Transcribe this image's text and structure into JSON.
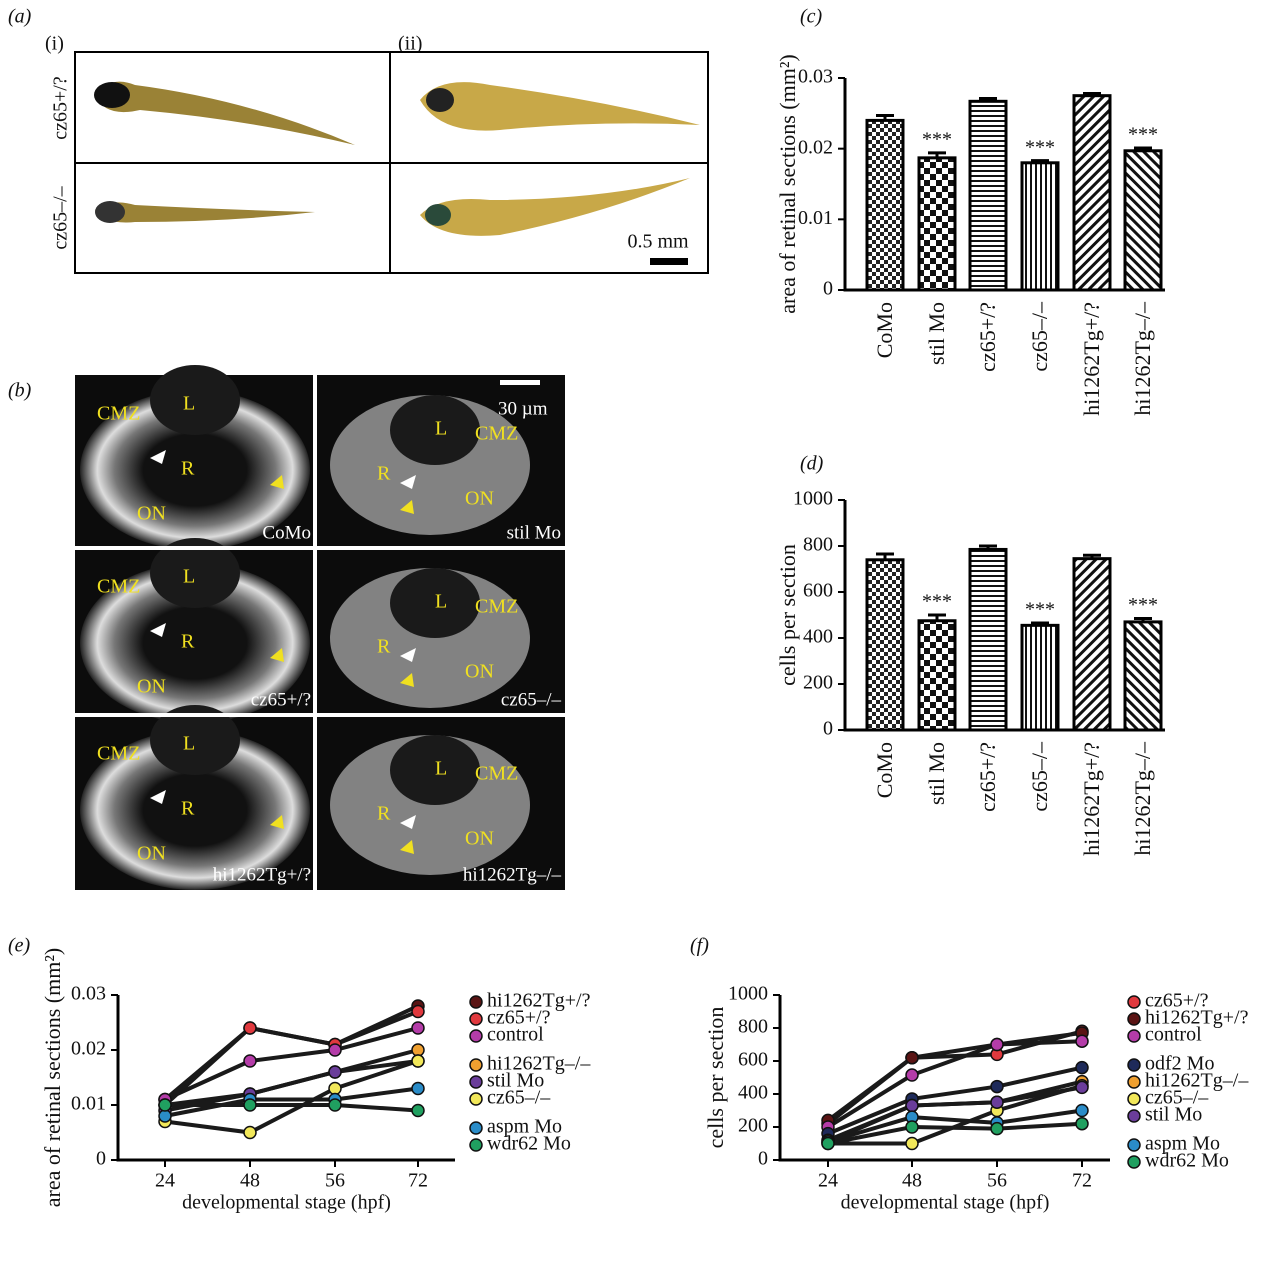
{
  "panel_a": {
    "label": "(a)",
    "columns": [
      "(i)",
      "(ii)"
    ],
    "rows": [
      "cz65+/?",
      "cz65–/–"
    ],
    "scale": "0.5 mm"
  },
  "panel_b": {
    "label": "(b)",
    "scale": "30 µm",
    "cells": [
      {
        "caption": "CoMo",
        "marks": [
          "CMZ",
          "L",
          "R",
          "ON"
        ]
      },
      {
        "caption": "stil Mo",
        "marks": [
          "L",
          "CMZ",
          "R",
          "ON"
        ]
      },
      {
        "caption": "cz65+/?",
        "marks": [
          "CMZ",
          "L",
          "R",
          "ON"
        ]
      },
      {
        "caption": "cz65–/–",
        "marks": [
          "L",
          "CMZ",
          "R",
          "ON"
        ]
      },
      {
        "caption": "hi1262Tg+/?",
        "marks": [
          "CMZ",
          "L",
          "R",
          "ON"
        ]
      },
      {
        "caption": "hi1262Tg–/–",
        "marks": [
          "L",
          "CMZ",
          "R",
          "ON"
        ]
      }
    ]
  },
  "chart_data": [
    {
      "type": "bar",
      "panel_label": "(c)",
      "ylabel": "area of retinal sections (mm²)",
      "categories": [
        "CoMo",
        "stil Mo",
        "cz65+/?",
        "cz65–/–",
        "hi1262Tg+/?",
        "hi1262Tg–/–"
      ],
      "values": [
        0.024,
        0.0187,
        0.0267,
        0.018,
        0.0275,
        0.0197
      ],
      "errors": [
        0.0007,
        0.0007,
        0.0004,
        0.0003,
        0.0003,
        0.0004
      ],
      "significance": [
        null,
        "***",
        null,
        "***",
        null,
        "***"
      ],
      "patterns": [
        "checker",
        "checker-large",
        "horizontal",
        "vertical",
        "diagonal",
        "diagonal-back"
      ],
      "ylim": [
        0,
        0.03
      ],
      "yticks": [
        0,
        0.01,
        0.02,
        0.03
      ]
    },
    {
      "type": "bar",
      "panel_label": "(d)",
      "ylabel": "cells per section",
      "categories": [
        "CoMo",
        "stil Mo",
        "cz65+/?",
        "cz65–/–",
        "hi1262Tg+/?",
        "hi1262Tg–/–"
      ],
      "values": [
        740,
        475,
        785,
        455,
        745,
        470
      ],
      "errors": [
        25,
        25,
        15,
        10,
        15,
        15
      ],
      "significance": [
        null,
        "***",
        null,
        "***",
        null,
        "***"
      ],
      "patterns": [
        "checker",
        "checker-large",
        "horizontal",
        "vertical",
        "diagonal",
        "diagonal-back"
      ],
      "ylim": [
        0,
        1000
      ],
      "yticks": [
        0,
        200,
        400,
        600,
        800,
        1000
      ]
    },
    {
      "type": "line",
      "panel_label": "(e)",
      "ylabel": "area of retinal sections (mm²)",
      "xlabel": "developmental stage (hpf)",
      "categories": [
        "24",
        "48",
        "56",
        "72"
      ],
      "ylim": [
        0,
        0.03
      ],
      "yticks": [
        0,
        0.01,
        0.02,
        0.03
      ],
      "series": [
        {
          "name": "hi1262Tg+/?",
          "color": "#5a1414",
          "values": [
            0.01,
            0.024,
            0.021,
            0.028
          ]
        },
        {
          "name": "cz65+/?",
          "color": "#e0393e",
          "values": [
            0.011,
            0.024,
            0.021,
            0.027
          ]
        },
        {
          "name": "control",
          "color": "#b43ca8",
          "values": [
            0.011,
            0.018,
            0.02,
            0.024
          ]
        },
        {
          "name": "hi1262Tg–/–",
          "color": "#f0a030",
          "values": [
            0.01,
            0.012,
            0.016,
            0.02
          ]
        },
        {
          "name": "stil Mo",
          "color": "#6a3d9a",
          "values": [
            0.009,
            0.012,
            0.016,
            0.018
          ]
        },
        {
          "name": "cz65–/–",
          "color": "#f2e85a",
          "values": [
            0.007,
            0.005,
            0.013,
            0.018
          ]
        },
        {
          "name": "aspm Mo",
          "color": "#2a8cc8",
          "values": [
            0.008,
            0.011,
            0.011,
            0.013
          ]
        },
        {
          "name": "wdr62 Mo",
          "color": "#20a060",
          "values": [
            0.01,
            0.01,
            0.01,
            0.009
          ]
        }
      ]
    },
    {
      "type": "line",
      "panel_label": "(f)",
      "ylabel": "cells per section",
      "xlabel": "developmental stage (hpf)",
      "categories": [
        "24",
        "48",
        "56",
        "72"
      ],
      "ylim": [
        0,
        1000
      ],
      "yticks": [
        0,
        200,
        400,
        600,
        800,
        1000
      ],
      "series": [
        {
          "name": "cz65+/?",
          "color": "#e0393e",
          "values": [
            220,
            620,
            640,
            780
          ]
        },
        {
          "name": "hi1262Tg+/?",
          "color": "#5a1414",
          "values": [
            240,
            620,
            700,
            770
          ]
        },
        {
          "name": "control",
          "color": "#b43ca8",
          "values": [
            200,
            515,
            700,
            720
          ]
        },
        {
          "name": "odf2 Mo",
          "color": "#1e2a5a",
          "values": [
            160,
            370,
            445,
            560
          ]
        },
        {
          "name": "hi1262Tg–/–",
          "color": "#f0a030",
          "values": [
            120,
            330,
            350,
            475
          ]
        },
        {
          "name": "cz65–/–",
          "color": "#f2e85a",
          "values": [
            100,
            100,
            300,
            450
          ]
        },
        {
          "name": "stil Mo",
          "color": "#6a3d9a",
          "values": [
            110,
            330,
            350,
            440
          ]
        },
        {
          "name": "aspm Mo",
          "color": "#2a8cc8",
          "values": [
            110,
            260,
            225,
            300
          ]
        },
        {
          "name": "wdr62 Mo",
          "color": "#20a060",
          "values": [
            100,
            200,
            190,
            220
          ]
        }
      ]
    }
  ]
}
